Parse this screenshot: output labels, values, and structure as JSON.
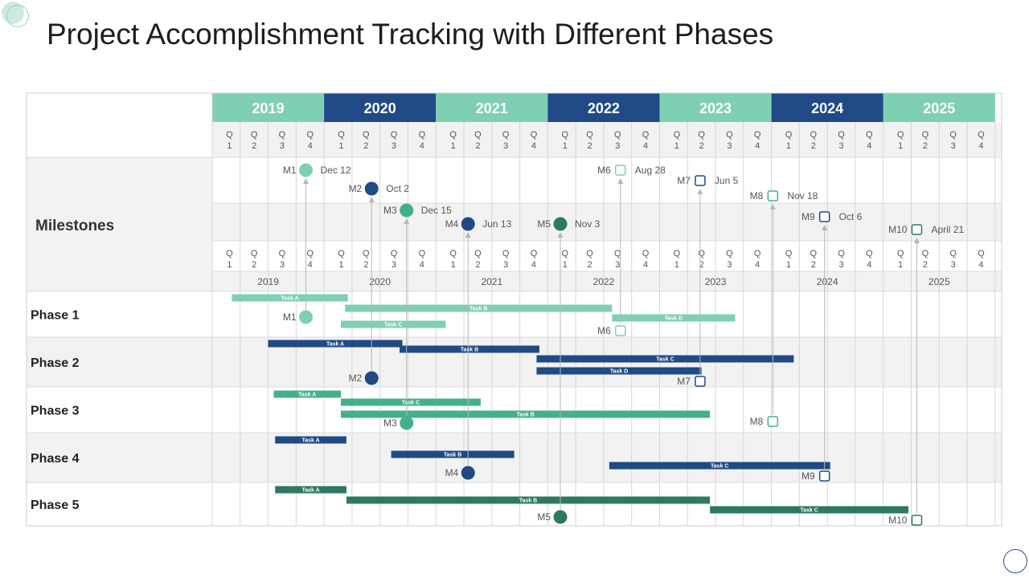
{
  "title": "Project Accomplishment Tracking with Different Phases",
  "colors": {
    "light": "#7fcfb2",
    "mid": "#43b08c",
    "navy": "#1f4a84",
    "dark": "#2d7a61",
    "year_light": "#7fcfb2",
    "year_dark": "#1f4a86"
  },
  "years": [
    "2019",
    "2020",
    "2021",
    "2022",
    "2023",
    "2024",
    "2025"
  ],
  "quarter_labels": [
    "Q\n1",
    "Q\n2",
    "Q\n3",
    "Q\n4"
  ],
  "milestones_label": "Milestones",
  "milestones": [
    {
      "id": "M1",
      "date": "Dec 12",
      "year_index": 0,
      "quarter_pos": 3.35,
      "shape": "circle",
      "color": "light",
      "phase": 0
    },
    {
      "id": "M2",
      "date": "Oct 2",
      "year_index": 1,
      "quarter_pos": 1.7,
      "shape": "circle",
      "color": "navy",
      "phase": 1
    },
    {
      "id": "M3",
      "date": "Dec 15",
      "year_index": 1,
      "quarter_pos": 2.95,
      "shape": "circle",
      "color": "mid",
      "phase": 2
    },
    {
      "id": "M4",
      "date": "Jun 13",
      "year_index": 2,
      "quarter_pos": 1.15,
      "shape": "circle",
      "color": "navy",
      "phase": 3
    },
    {
      "id": "M5",
      "date": "Nov 3",
      "year_index": 3,
      "quarter_pos": 0.45,
      "shape": "circle",
      "color": "dark",
      "phase": 4
    },
    {
      "id": "M6",
      "date": "Aug 28",
      "year_index": 3,
      "quarter_pos": 2.6,
      "shape": "square",
      "color": "light",
      "phase": 0
    },
    {
      "id": "M7",
      "date": "Jun 5",
      "year_index": 4,
      "quarter_pos": 1.45,
      "shape": "square",
      "color": "navy",
      "phase": 1
    },
    {
      "id": "M8",
      "date": "Nov 18",
      "year_index": 5,
      "quarter_pos": 0.05,
      "shape": "square",
      "color": "mid",
      "phase": 2
    },
    {
      "id": "M9",
      "date": "Oct 6",
      "year_index": 5,
      "quarter_pos": 1.9,
      "shape": "square",
      "color": "navy",
      "phase": 3
    },
    {
      "id": "M10",
      "date": "April 21",
      "year_index": 6,
      "quarter_pos": 1.2,
      "shape": "square",
      "color": "dark",
      "phase": 4
    }
  ],
  "phases": [
    {
      "label": "Phase 1",
      "color": "light",
      "tasks": [
        {
          "name": "Task A",
          "start": 0.7,
          "end": 4.85
        },
        {
          "name": "Task B",
          "start": 4.75,
          "end": 14.3
        },
        {
          "name": "Task C",
          "start": 4.6,
          "end": 8.35
        },
        {
          "name": "Task D",
          "start": 14.3,
          "end": 18.7
        }
      ]
    },
    {
      "label": "Phase 2",
      "color": "navy",
      "tasks": [
        {
          "name": "Task A",
          "start": 2.0,
          "end": 6.8
        },
        {
          "name": "Task B",
          "start": 6.7,
          "end": 11.7
        },
        {
          "name": "Task C",
          "start": 11.6,
          "end": 20.8
        },
        {
          "name": "Task D",
          "start": 11.6,
          "end": 17.5
        }
      ]
    },
    {
      "label": "Phase 3",
      "color": "mid",
      "tasks": [
        {
          "name": "Task A",
          "start": 2.2,
          "end": 4.6
        },
        {
          "name": "Task C",
          "start": 4.6,
          "end": 9.6
        },
        {
          "name": "Task B",
          "start": 4.6,
          "end": 17.8
        }
      ]
    },
    {
      "label": "Phase 4",
      "color": "navy",
      "tasks": [
        {
          "name": "Task A",
          "start": 2.25,
          "end": 4.8
        },
        {
          "name": "Task B",
          "start": 6.4,
          "end": 10.8
        },
        {
          "name": "Task C",
          "start": 14.2,
          "end": 22.1
        }
      ]
    },
    {
      "label": "Phase 5",
      "color": "dark",
      "tasks": [
        {
          "name": "Task A",
          "start": 2.25,
          "end": 4.8
        },
        {
          "name": "Task B",
          "start": 4.8,
          "end": 17.8
        },
        {
          "name": "Task C",
          "start": 17.8,
          "end": 24.9
        }
      ]
    }
  ]
}
